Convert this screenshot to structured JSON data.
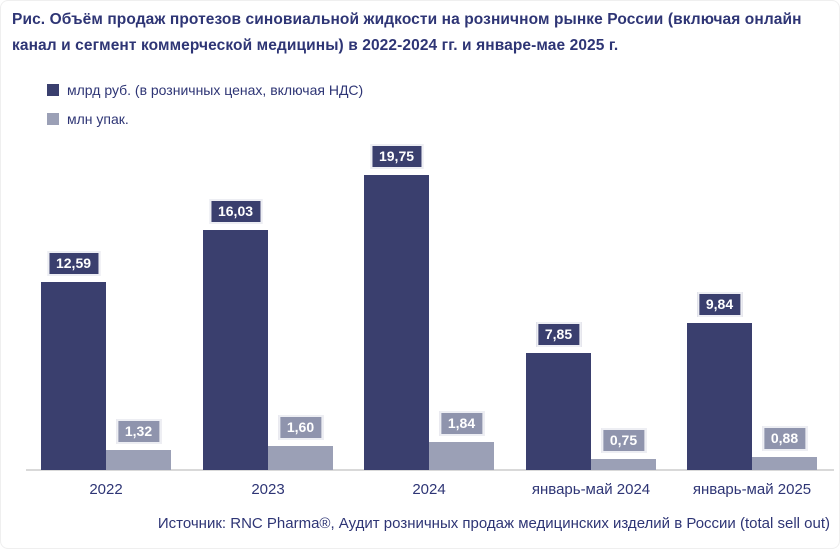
{
  "figure": {
    "title": "Рис. Объём продаж протезов синовиальной жидкости на розничном рынке России (включая онлайн канал и сегмент коммерческой медицины) в 2022-2024 гг. и январе-мае 2025 г.",
    "source": "Источник: RNC Pharma®, Аудит розничных продаж медицинских изделий в России (total sell out)"
  },
  "colors": {
    "text_navy": "#2e3575",
    "bar_primary": "#3a3f6e",
    "bar_secondary": "#9ba0b6",
    "badge_primary": "#3a3f6e",
    "badge_secondary": "#8f94ad",
    "badge_border": "#edeef3",
    "baseline": "#d9d9d9",
    "background": "#ffffff"
  },
  "chart_data": {
    "type": "bar",
    "title": "Объём продаж протезов синовиальной жидкости на розничном рынке России (включая онлайн канал и сегмент коммерческой медицины) в 2022-2024 гг. и январе-мае 2025 г.",
    "categories": [
      "2022",
      "2023",
      "2024",
      "январь-май 2024",
      "январь-май 2025"
    ],
    "series": [
      {
        "name": "млрд руб. (в розничных ценах, включая НДС)",
        "key": "rub",
        "values": [
          12.59,
          16.03,
          19.75,
          7.85,
          9.84
        ],
        "labels": [
          "12,59",
          "16,03",
          "19,75",
          "7,85",
          "9,84"
        ],
        "color": "#3a3f6e",
        "badge_color": "#3a3f6e"
      },
      {
        "name": "млн упак.",
        "key": "pack",
        "values": [
          1.32,
          1.6,
          1.84,
          0.75,
          0.88
        ],
        "labels": [
          "1,32",
          "1,60",
          "1,84",
          "0,75",
          "0,88"
        ],
        "color": "#9ba0b6",
        "badge_color": "#8f94ad"
      }
    ],
    "xlabel": "",
    "ylabel": "",
    "ylim": [
      0,
      21
    ],
    "grid": false,
    "value_axis_hidden": true,
    "data_labels": "above-bars",
    "legend_position": "top-left"
  }
}
